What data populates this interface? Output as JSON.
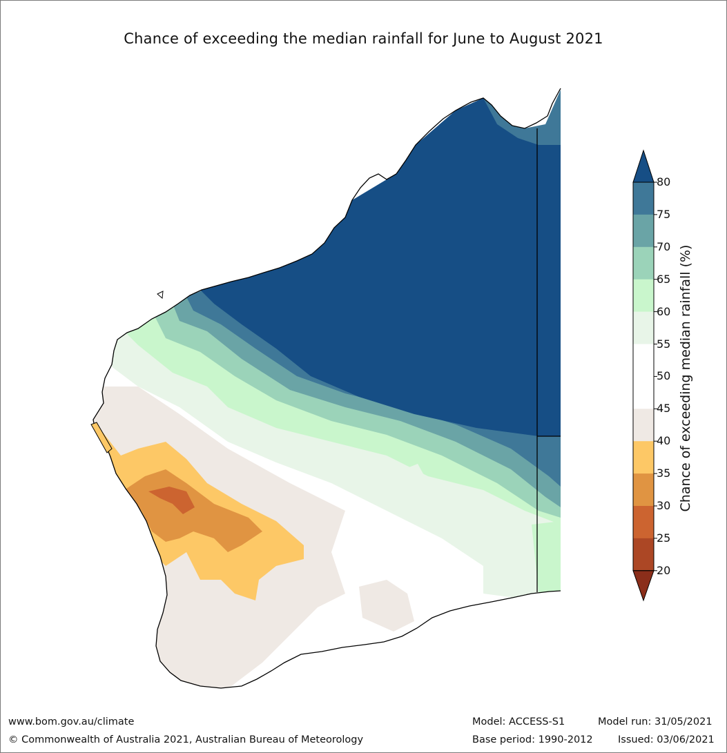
{
  "title": "Chance of exceeding the median rainfall for June to August 2021",
  "colorbar": {
    "label": "Chance of exceeding median rainfall (%)",
    "ticks": [
      "80",
      "75",
      "70",
      "65",
      "60",
      "55",
      "50",
      "45",
      "40",
      "35",
      "30",
      "25",
      "20"
    ],
    "bins": [
      {
        "range": "75-80",
        "color": "#3f7898"
      },
      {
        "range": "70-75",
        "color": "#6aa4a6"
      },
      {
        "range": "65-70",
        "color": "#9bd3b9"
      },
      {
        "range": "60-65",
        "color": "#c9f6cc"
      },
      {
        "range": "55-60",
        "color": "#e8f5e8"
      },
      {
        "range": "50-55",
        "color": "#ffffff"
      },
      {
        "range": "45-50",
        "color": "#ffffff"
      },
      {
        "range": "40-45",
        "color": "#efe9e4"
      },
      {
        "range": "35-40",
        "color": "#fdc866"
      },
      {
        "range": "30-35",
        "color": "#e09442"
      },
      {
        "range": "25-30",
        "color": "#cc6430"
      },
      {
        "range": "20-25",
        "color": "#ac4725"
      }
    ],
    "over_color": "#164e85",
    "under_color": "#8b2e1a"
  },
  "footer": {
    "website": "www.bom.gov.au/climate",
    "copyright": "© Commonwealth of Australia 2021, Australian Bureau of Meteorology",
    "model": "Model: ACCESS-S1",
    "base_period": "Base period: 1990-2012",
    "model_run": "Model run: 31/05/2021",
    "issued": "Issued: 03/06/2021"
  }
}
